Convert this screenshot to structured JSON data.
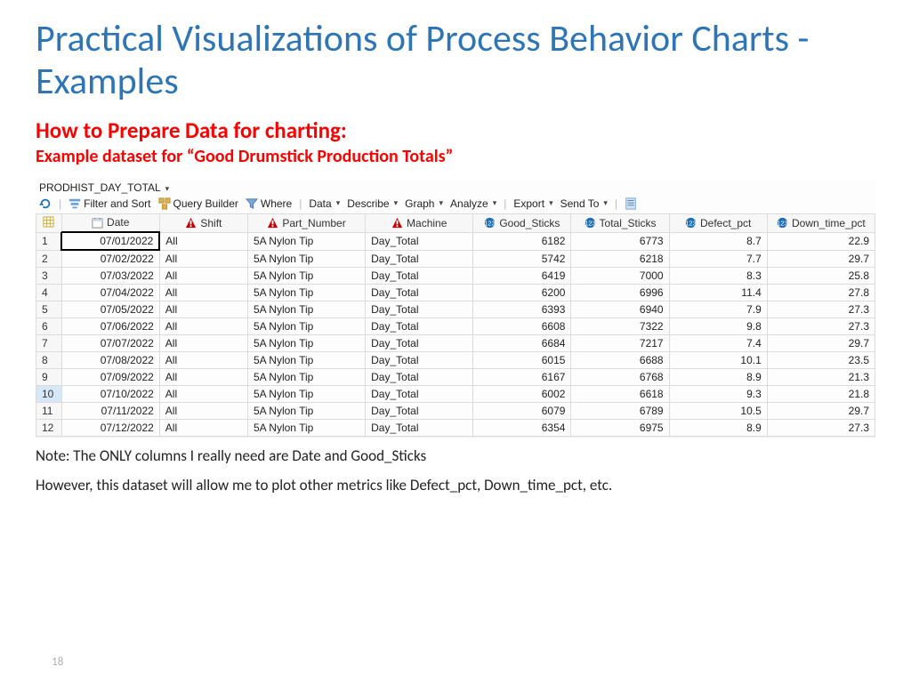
{
  "title": "Practical Visualizations of Process Behavior Charts - Examples",
  "sub1": "How to Prepare Data for charting:",
  "sub2": "Example dataset for “Good Drumstick Production Totals”",
  "dataset_name": "PRODHIST_DAY_TOTAL",
  "toolbar": {
    "filter": "Filter and Sort",
    "query": "Query Builder",
    "where": "Where",
    "data": "Data",
    "describe": "Describe",
    "graph": "Graph",
    "analyze": "Analyze",
    "export": "Export",
    "sendto": "Send To"
  },
  "columns": [
    {
      "key": "Date",
      "type": "date",
      "align": "right"
    },
    {
      "key": "Shift",
      "type": "char",
      "align": "left"
    },
    {
      "key": "Part_Number",
      "type": "char",
      "align": "left"
    },
    {
      "key": "Machine",
      "type": "char",
      "align": "left"
    },
    {
      "key": "Good_Sticks",
      "type": "num",
      "align": "right"
    },
    {
      "key": "Total_Sticks",
      "type": "num",
      "align": "right"
    },
    {
      "key": "Defect_pct",
      "type": "num",
      "align": "right"
    },
    {
      "key": "Down_time_pct",
      "type": "num",
      "align": "right"
    }
  ],
  "rows": [
    [
      "07/01/2022",
      "All",
      "5A Nylon Tip",
      "Day_Total",
      "6182",
      "6773",
      "8.7",
      "22.9"
    ],
    [
      "07/02/2022",
      "All",
      "5A Nylon Tip",
      "Day_Total",
      "5742",
      "6218",
      "7.7",
      "29.7"
    ],
    [
      "07/03/2022",
      "All",
      "5A Nylon Tip",
      "Day_Total",
      "6419",
      "7000",
      "8.3",
      "25.8"
    ],
    [
      "07/04/2022",
      "All",
      "5A Nylon Tip",
      "Day_Total",
      "6200",
      "6996",
      "11.4",
      "27.8"
    ],
    [
      "07/05/2022",
      "All",
      "5A Nylon Tip",
      "Day_Total",
      "6393",
      "6940",
      "7.9",
      "27.3"
    ],
    [
      "07/06/2022",
      "All",
      "5A Nylon Tip",
      "Day_Total",
      "6608",
      "7322",
      "9.8",
      "27.3"
    ],
    [
      "07/07/2022",
      "All",
      "5A Nylon Tip",
      "Day_Total",
      "6684",
      "7217",
      "7.4",
      "29.7"
    ],
    [
      "07/08/2022",
      "All",
      "5A Nylon Tip",
      "Day_Total",
      "6015",
      "6688",
      "10.1",
      "23.5"
    ],
    [
      "07/09/2022",
      "All",
      "5A Nylon Tip",
      "Day_Total",
      "6167",
      "6768",
      "8.9",
      "21.3"
    ],
    [
      "07/10/2022",
      "All",
      "5A Nylon Tip",
      "Day_Total",
      "6002",
      "6618",
      "9.3",
      "21.8"
    ],
    [
      "07/11/2022",
      "All",
      "5A Nylon Tip",
      "Day_Total",
      "6079",
      "6789",
      "10.5",
      "29.7"
    ],
    [
      "07/12/2022",
      "All",
      "5A Nylon Tip",
      "Day_Total",
      "6354",
      "6975",
      "8.9",
      "27.3"
    ]
  ],
  "selected_row": 10,
  "note1": "Note: The ONLY columns I really need are Date and Good_Sticks",
  "note2": "However, this dataset will allow me to plot other metrics like Defect_pct, Down_time_pct, etc.",
  "page_number": "18",
  "colors": {
    "title": "#2e75b6",
    "subtitle": "#ff0000",
    "grid_border": "#dcdcdc",
    "header_bg": "#f7f7f7",
    "char_icon": "#c00000",
    "num_icon": "#1f6fb5",
    "refresh_icon": "#1f6fb5"
  }
}
